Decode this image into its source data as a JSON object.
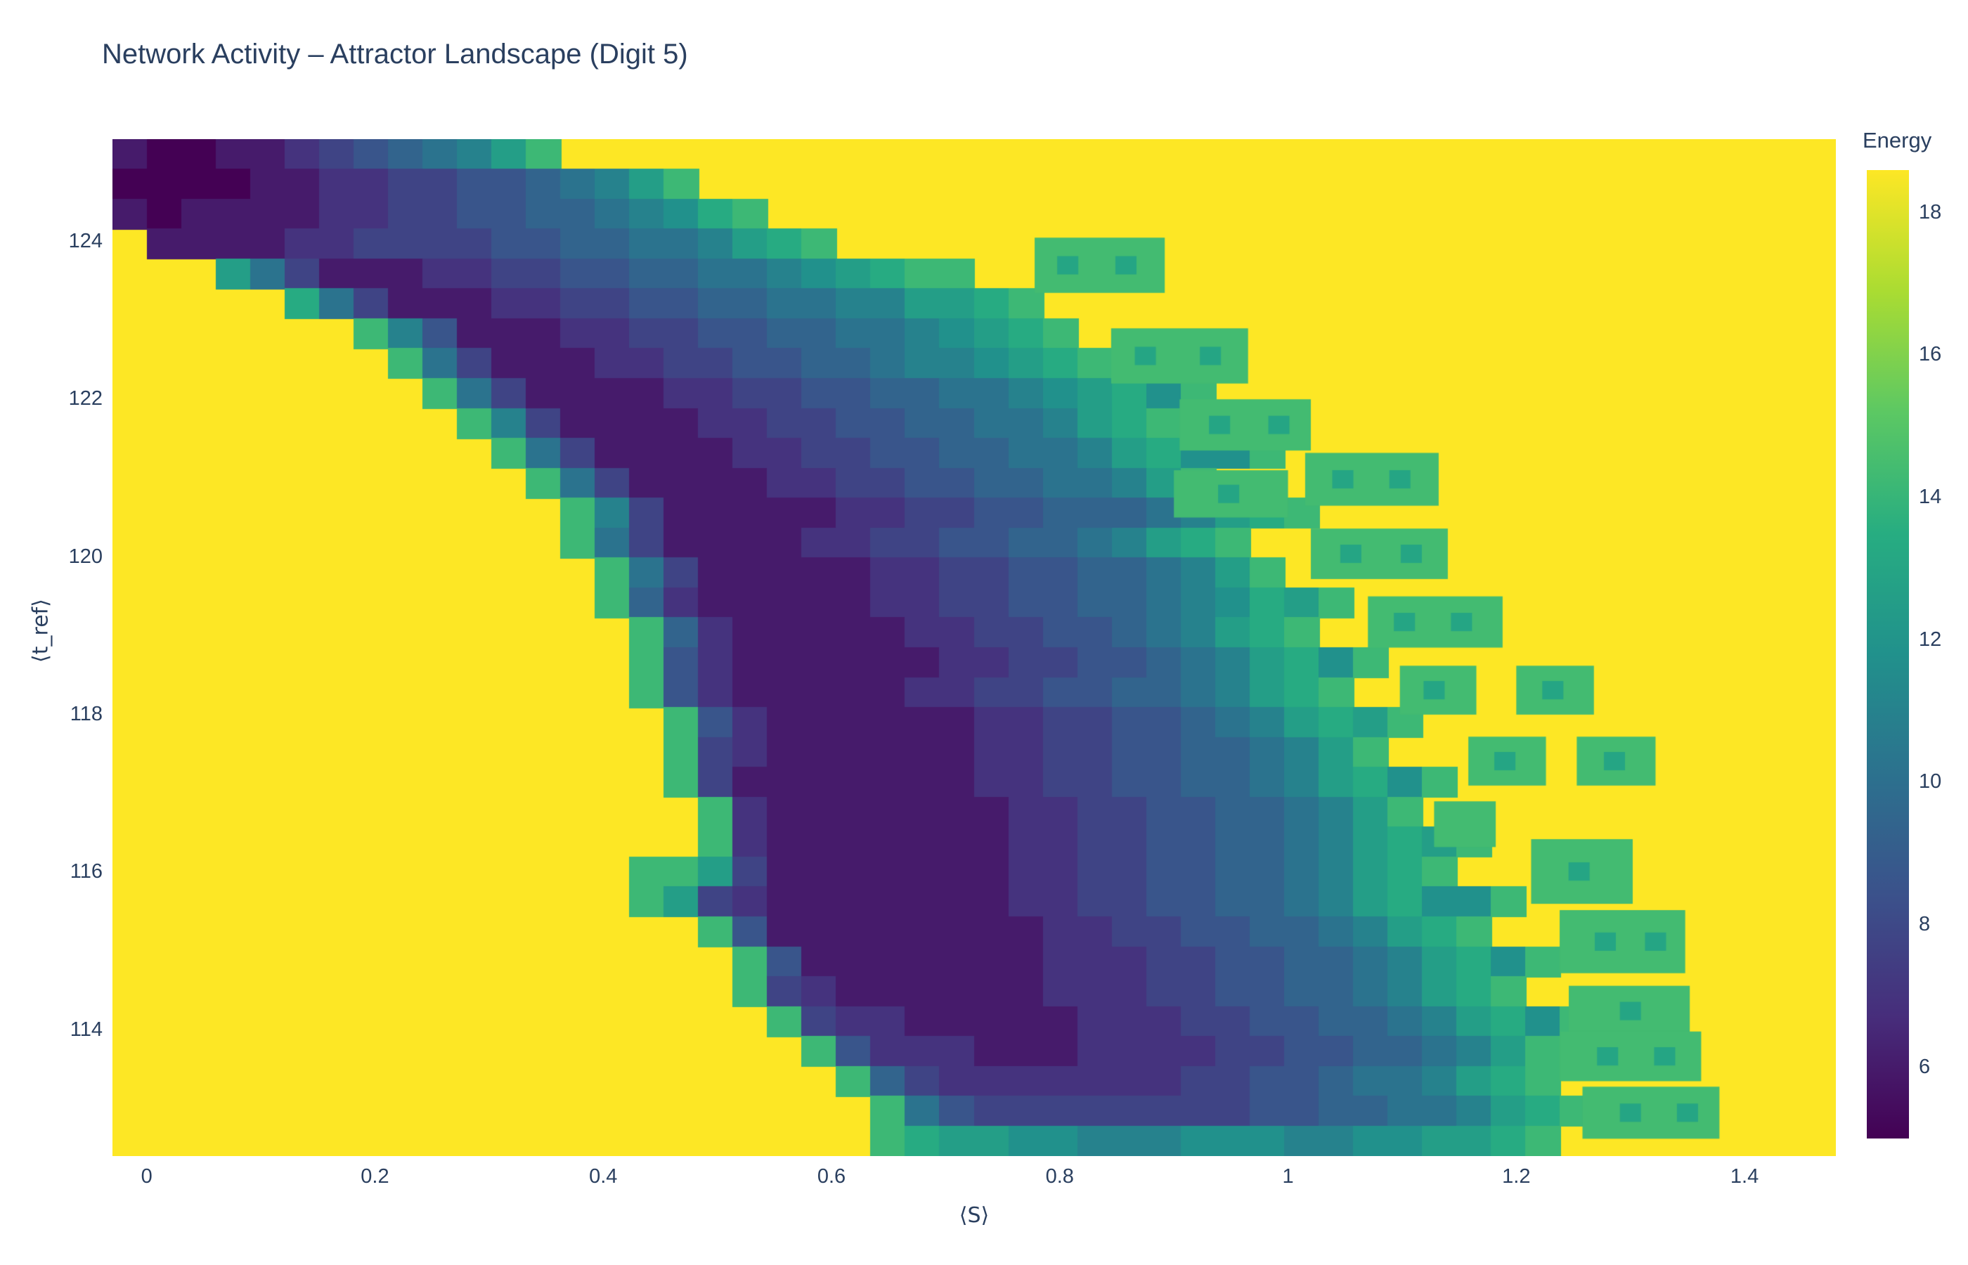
{
  "title": "Network Activity – Attractor Landscape (Digit 5)",
  "colors": {
    "title_text": "#2a3f5f",
    "page_background": "#ffffff",
    "viridis": [
      "#440154",
      "#472d7b",
      "#3b518b",
      "#2c718e",
      "#21918c",
      "#27ad81",
      "#5cc863",
      "#aadc32",
      "#fde725"
    ]
  },
  "chart_data": {
    "type": "heatmap",
    "title": "Network Activity – Attractor Landscape (Digit 5)",
    "xlabel": "⟨S⟩",
    "ylabel": "⟨t_ref⟩",
    "colorbar_title": "Energy",
    "legend_position": "right",
    "grid": false,
    "x_range": [
      -0.03,
      1.48
    ],
    "y_range": [
      112.4,
      125.3
    ],
    "x_ticks": [
      0,
      0.2,
      0.4,
      0.6,
      0.8,
      1,
      1.2,
      1.4
    ],
    "y_ticks": [
      114,
      116,
      118,
      120,
      122,
      124
    ],
    "colorbar_ticks": [
      6,
      8,
      10,
      12,
      14,
      16,
      18
    ],
    "value_range": [
      5,
      18.6
    ],
    "background_value": 18.6,
    "grid_cols": 50,
    "grid_rows": 34,
    "encoding": {
      "a": 5,
      "b": 6,
      "c": 7,
      "d": 7.8,
      "e": 8.6,
      "f": 9.4,
      "g": 10.2,
      "h": 11,
      "i": 11.8,
      "j": 12.6,
      "k": 13.4,
      "l": 14.2,
      "m": 15,
      ".": 18.6
    },
    "grid_rows_encoded": [
      "baabbcdefghjl",
      "aaaabbccddeefghjl",
      "babbbbccddeeffghikl",
      ".bbbbccddddeeffgghjkl",
      "...jgdbbbccddeeffgghijkll",
      ".....kgdbbbccddeeffgghhjjkl",
      ".......lhebbbccddeeffgghijkl",
      "........lgdbbbccddeeffghhijkl",
      ".........lgdbbbbccddeeffgghijkil",
      "..........lhdbbbbccddeeffgghjkl",
      "...........lgdbbbbccddeeffgghjkiil",
      "............lgdbbbbccddeeffgghjl",
      ".............lhdbbbbbccddeefffghjkl",
      ".............lgdbbbbccddeeffghjkl",
      "..............lgdbbbbbccddeeffghjl",
      "..............lfcbbbbbccddeeffghikjl",
      "...............lfcbbbbbccddeefghjkl",
      "...............lecbbbbbbccddeefghjkil",
      "...............lecbbbbbccddeeffghjkl",
      "................lecbbbbbbccddeefghjkjl",
      "................ldcbbbbbbccddeeffghjl",
      "................ldbbbbbbbccddeeffghjkil",
      ".................lcbbbbbbbccddeeffghjl",
      ".................lcbbbbbbbccddeeffghjkjl",
      "...............lljdbbbbbbbccddeeffghjkl",
      "...............ljdcbbbbbbbccddeeffghjkiil",
      ".................lebbbbbbbbccddeeffghjkl",
      "..................lebbbbbbbcccddeeffghjkil",
      "..................ldcbbbbbbcccddeeffghjkl",
      "...................ldccbbbbbcccddeeffghjkil",
      "....................lecccbbbccccddeeffghjl",
      ".....................lfdcccccccddeefgghjkl",
      "......................lgeddddddddeeffgghjkl",
      "......................lkjjiihhhiiihhiijjkl"
    ],
    "islands": {
      "body_value": 14.4,
      "dot_value": 13,
      "rects": [
        [
          0.778,
          123.35,
          0.892,
          124.05,
          [
            0.807,
            0.858
          ]
        ],
        [
          0.845,
          122.2,
          0.965,
          122.9,
          [
            0.875,
            0.932
          ]
        ],
        [
          0.905,
          121.35,
          1.02,
          122.0,
          [
            0.94,
            0.992
          ]
        ],
        [
          0.9,
          120.5,
          1.0,
          121.1,
          [
            0.948
          ]
        ],
        [
          1.015,
          120.65,
          1.132,
          121.32,
          [
            1.048,
            1.098
          ]
        ],
        [
          1.02,
          119.72,
          1.14,
          120.36,
          [
            1.055,
            1.108
          ]
        ],
        [
          1.07,
          118.85,
          1.188,
          119.5,
          [
            1.102,
            1.152
          ]
        ],
        [
          1.098,
          118.0,
          1.165,
          118.62,
          [
            1.128
          ]
        ],
        [
          1.2,
          118.0,
          1.268,
          118.62,
          [
            1.232
          ]
        ],
        [
          1.158,
          117.1,
          1.226,
          117.72,
          [
            1.19
          ]
        ],
        [
          1.253,
          117.1,
          1.322,
          117.72,
          [
            1.286
          ]
        ],
        [
          1.128,
          116.32,
          1.182,
          116.9,
          []
        ],
        [
          1.213,
          115.6,
          1.302,
          116.42,
          [
            1.255
          ]
        ],
        [
          1.238,
          114.72,
          1.348,
          115.52,
          [
            1.278,
            1.322
          ]
        ],
        [
          1.246,
          113.92,
          1.352,
          114.56,
          [
            1.3
          ]
        ],
        [
          1.238,
          113.35,
          1.362,
          113.98,
          [
            1.28,
            1.33
          ]
        ],
        [
          1.258,
          112.62,
          1.378,
          113.28,
          [
            1.3,
            1.35
          ]
        ]
      ]
    }
  }
}
